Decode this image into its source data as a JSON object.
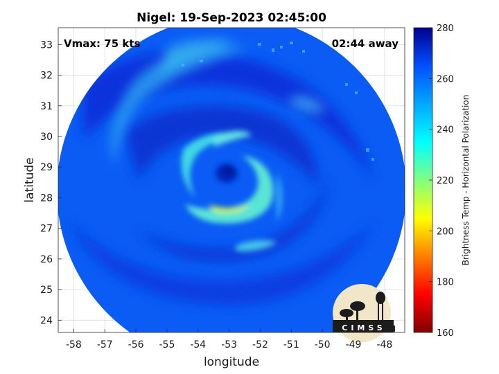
{
  "title": "Nigel: 19-Sep-2023 02:45:00",
  "vmax_label": "Vmax: 75 kts",
  "time_away_label": "02:44 away",
  "xlabel": "longitude",
  "ylabel": "latitude",
  "colorbar_label": "Brightness Temp - Horizontal Polarization",
  "logo_text": "CIMSS",
  "chart_data": {
    "type": "heatmap",
    "x_axis": {
      "range": [
        -58.5,
        -47.35
      ],
      "ticks": [
        -58,
        -57,
        -56,
        -55,
        -54,
        -53,
        -52,
        -51,
        -50,
        -49,
        -48
      ]
    },
    "y_axis": {
      "range": [
        23.6,
        33.55
      ],
      "ticks": [
        24,
        25,
        26,
        27,
        28,
        29,
        30,
        31,
        32,
        33
      ]
    },
    "colorbar": {
      "range": [
        160,
        280
      ],
      "ticks": [
        160,
        180,
        200,
        220,
        240,
        260,
        280
      ]
    },
    "grid": true,
    "storm_center": {
      "lon": -53.0,
      "lat": 28.9
    },
    "swath_center": {
      "lon": -53.0,
      "lat": 28.5
    },
    "colors": {
      "cold": "#800000",
      "red": "#ff0000",
      "yellow": "#ffff00",
      "cyan": "#00ffff",
      "mid_blue": "#0a5cf5",
      "dark_blue": "#00008f"
    }
  }
}
